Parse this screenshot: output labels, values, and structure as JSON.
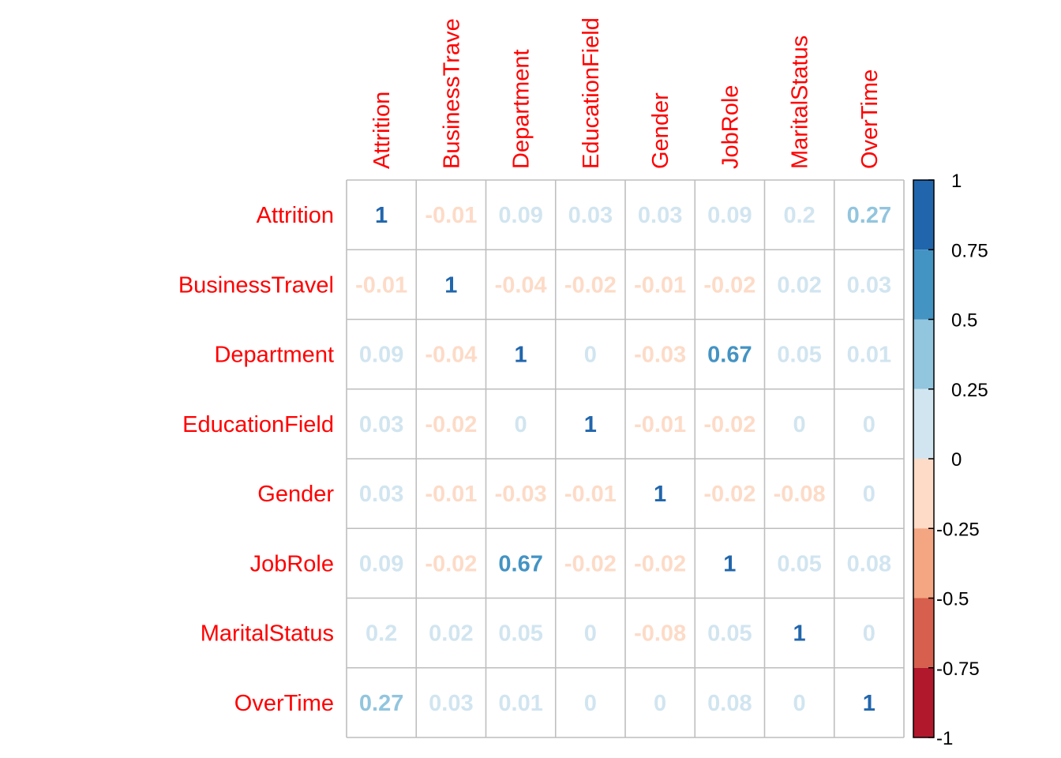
{
  "chart_data": {
    "type": "heatmap",
    "variables": [
      "Attrition",
      "BusinessTravel",
      "Department",
      "EducationField",
      "Gender",
      "JobRole",
      "MaritalStatus",
      "OverTime"
    ],
    "column_labels": [
      "Attrition",
      "BusinessTrave",
      "Department",
      "EducationField",
      "Gender",
      "JobRole",
      "MaritalStatus",
      "OverTime"
    ],
    "row_labels": [
      "Attrition",
      "BusinessTravel",
      "Department",
      "EducationField",
      "Gender",
      "JobRole",
      "MaritalStatus",
      "OverTime"
    ],
    "matrix": [
      [
        1,
        -0.01,
        0.09,
        0.03,
        0.03,
        0.09,
        0.2,
        0.27
      ],
      [
        -0.01,
        1,
        -0.04,
        -0.02,
        -0.01,
        -0.02,
        0.02,
        0.03
      ],
      [
        0.09,
        -0.04,
        1,
        0,
        -0.03,
        0.67,
        0.05,
        0.01
      ],
      [
        0.03,
        -0.02,
        0,
        1,
        -0.01,
        -0.02,
        0,
        0
      ],
      [
        0.03,
        -0.01,
        -0.03,
        -0.01,
        1,
        -0.02,
        -0.08,
        0
      ],
      [
        0.09,
        -0.02,
        0.67,
        -0.02,
        -0.02,
        1,
        0.05,
        0.08
      ],
      [
        0.2,
        0.02,
        0.05,
        0,
        -0.08,
        0.05,
        1,
        0
      ],
      [
        0.27,
        0.03,
        0.01,
        0,
        0,
        0.08,
        0,
        1
      ]
    ],
    "display_method": "number",
    "label_color": "#ff0000",
    "grid": true,
    "legend": {
      "position": "right",
      "range": [
        -1,
        1
      ],
      "tick_labels": [
        "1",
        "0.75",
        "0.5",
        "0.25",
        "0",
        "-0.25",
        "-0.5",
        "-0.75",
        "-1"
      ],
      "tick_values": [
        1,
        0.75,
        0.5,
        0.25,
        0,
        -0.25,
        -0.5,
        -0.75,
        -1
      ],
      "bins": [
        {
          "from": 0.75,
          "to": 1,
          "color": "#2166ac"
        },
        {
          "from": 0.5,
          "to": 0.75,
          "color": "#4393c3"
        },
        {
          "from": 0.25,
          "to": 0.5,
          "color": "#92c5de"
        },
        {
          "from": 0,
          "to": 0.25,
          "color": "#d1e5f0"
        },
        {
          "from": -0.25,
          "to": 0,
          "color": "#fddbc7"
        },
        {
          "from": -0.5,
          "to": -0.25,
          "color": "#f4a582"
        },
        {
          "from": -0.75,
          "to": -0.5,
          "color": "#d6604d"
        },
        {
          "from": -1,
          "to": -0.75,
          "color": "#b2182b"
        }
      ]
    }
  }
}
